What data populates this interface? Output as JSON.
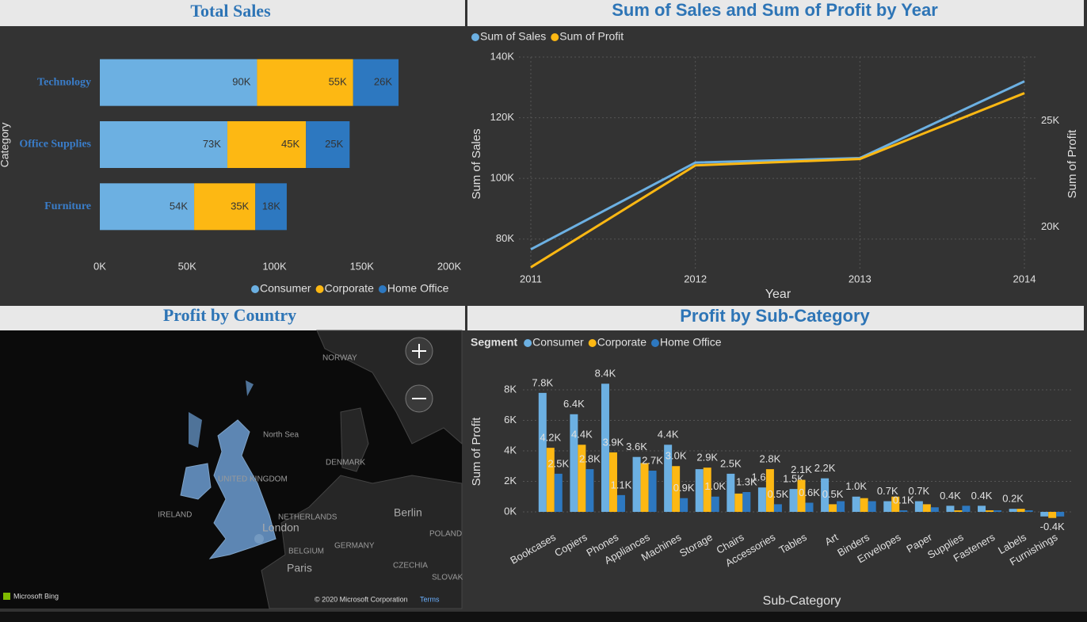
{
  "chart_data": [
    {
      "type": "bar",
      "orientation": "horizontal",
      "stacked": true,
      "title": "Total Sales",
      "y_label": "Category",
      "categories": [
        "Technology",
        "Office Supplies",
        "Furniture"
      ],
      "series": [
        {
          "name": "Consumer",
          "color": "#6cb0e2",
          "values": [
            90000,
            73000,
            54000
          ],
          "value_labels": [
            "90K",
            "73K",
            "54K"
          ]
        },
        {
          "name": "Corporate",
          "color": "#fdb813",
          "values": [
            55000,
            45000,
            35000
          ],
          "value_labels": [
            "55K",
            "45K",
            "35K"
          ]
        },
        {
          "name": "Home Office",
          "color": "#2d78c0",
          "values": [
            26000,
            25000,
            18000
          ],
          "value_labels": [
            "26K",
            "25K",
            "18K"
          ]
        }
      ],
      "xlim": [
        0,
        200000
      ],
      "xticks": [
        {
          "value": 0,
          "label": "0K"
        },
        {
          "value": 50000,
          "label": "50K"
        },
        {
          "value": 100000,
          "label": "100K"
        },
        {
          "value": 150000,
          "label": "150K"
        },
        {
          "value": 200000,
          "label": "200K"
        }
      ],
      "legend": "bottom-right"
    },
    {
      "type": "line",
      "title": "Sum of Sales and Sum of Profit by Year",
      "x_label": "Year",
      "y_label": "Sum of Sales",
      "y2_label": "Sum of Profit",
      "x": [
        2011,
        2012,
        2013,
        2014
      ],
      "xlim": [
        2011,
        2014
      ],
      "xticks": [
        2011,
        2012,
        2013,
        2014
      ],
      "series": [
        {
          "name": "Sum of Sales",
          "color": "#6cb0e2",
          "values": [
            76600,
            105200,
            106700,
            132000
          ]
        },
        {
          "name": "Sum of Profit",
          "color": "#fdb813",
          "axis": "y2",
          "values": [
            18100,
            22900,
            23200,
            26300
          ]
        }
      ],
      "ylim": [
        70000,
        140000
      ],
      "yticks": [
        {
          "value": 80000,
          "label": "80K"
        },
        {
          "value": 100000,
          "label": "100K"
        },
        {
          "value": 120000,
          "label": "120K"
        },
        {
          "value": 140000,
          "label": "140K"
        }
      ],
      "y2lim": [
        18000,
        28000
      ],
      "y2ticks": [
        {
          "value": 20000,
          "label": "20K"
        },
        {
          "value": 25000,
          "label": "25K"
        }
      ],
      "grid": true,
      "legend": "top-left"
    },
    {
      "type": "bar",
      "orientation": "vertical",
      "title": "Profit by Sub-Category",
      "legend_title": "Segment",
      "x_label": "Sub-Category",
      "y_label": "Sum of Profit",
      "categories": [
        "Bookcases",
        "Copiers",
        "Phones",
        "Appliances",
        "Machines",
        "Storage",
        "Chairs",
        "Accessories",
        "Tables",
        "Art",
        "Binders",
        "Envelopes",
        "Paper",
        "Supplies",
        "Fasteners",
        "Labels",
        "Furnishings"
      ],
      "series": [
        {
          "name": "Consumer",
          "color": "#6cb0e2",
          "values": [
            7800,
            6400,
            8400,
            3600,
            4400,
            2800,
            2500,
            1600,
            1500,
            2200,
            1000,
            700,
            700,
            400,
            400,
            200,
            -300
          ],
          "value_labels": [
            "7.8K",
            "6.4K",
            "8.4K",
            "3.6K",
            "4.4K",
            null,
            "2.5K",
            "1.6K",
            "1.5K",
            "2.2K",
            "1.0K",
            "0.7K",
            "0.7K",
            "0.4K",
            "0.4K",
            "0.2K",
            null
          ]
        },
        {
          "name": "Corporate",
          "color": "#fdb813",
          "values": [
            4200,
            4400,
            3900,
            3200,
            3000,
            2900,
            1200,
            2800,
            2100,
            500,
            900,
            1000,
            500,
            100,
            100,
            200,
            -400
          ],
          "value_labels": [
            "4.2K",
            "4.4K",
            "3.9K",
            null,
            "3.0K",
            "2.9K",
            null,
            "2.8K",
            "2.1K",
            "0.5K",
            null,
            null,
            null,
            null,
            null,
            null,
            "-0.4K"
          ]
        },
        {
          "name": "Home Office",
          "color": "#2d78c0",
          "values": [
            2500,
            2800,
            1100,
            2700,
            900,
            1000,
            1300,
            500,
            600,
            700,
            700,
            100,
            300,
            400,
            100,
            100,
            -300
          ],
          "value_labels": [
            "2.5K",
            "2.8K",
            "1.1K",
            "2.7K",
            "0.9K",
            "1.0K",
            "1.3K",
            "0.5K",
            "0.6K",
            null,
            null,
            "0.1K",
            null,
            null,
            null,
            null,
            null
          ]
        }
      ],
      "ylim": [
        -700,
        9100
      ],
      "yticks": [
        {
          "value": 0,
          "label": "0K"
        },
        {
          "value": 2000,
          "label": "2K"
        },
        {
          "value": 4000,
          "label": "4K"
        },
        {
          "value": 6000,
          "label": "6K"
        },
        {
          "value": 8000,
          "label": "8K"
        }
      ],
      "grid": true,
      "legend": "top-left"
    }
  ],
  "map": {
    "title": "Profit by Country",
    "labels": [
      "NORWAY",
      "North Sea",
      "DENMARK",
      "UNITED KINGDOM",
      "IRELAND",
      "NETHERLANDS",
      "London",
      "Berlin",
      "POLAND",
      "BELGIUM",
      "GERMANY",
      "Paris",
      "CZECHIA",
      "SLOVAK"
    ],
    "provider": "Microsoft Bing",
    "copyright": "© 2020 Microsoft Corporation",
    "terms": "Terms"
  }
}
